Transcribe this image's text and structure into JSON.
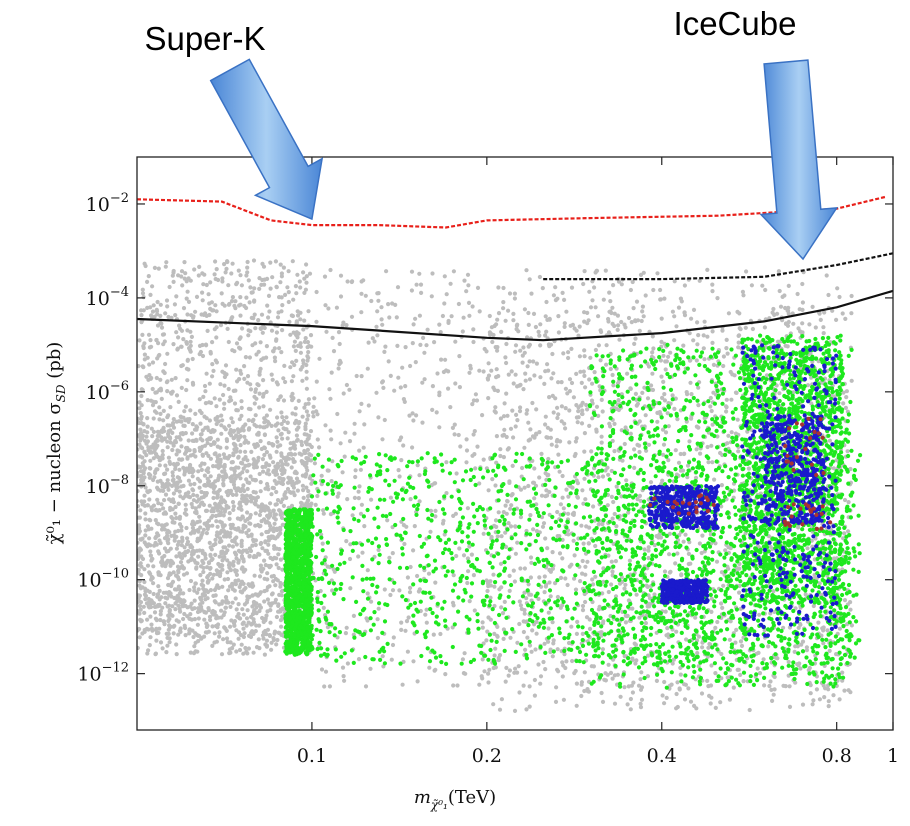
{
  "chart_data": {
    "type": "scatter",
    "x_scale": "log",
    "y_scale": "log",
    "xlabel_main": "m",
    "xlabel_sub": "χ̃⁰₁",
    "xlabel_unit": "(TeV)",
    "ylabel": "χ̃⁰₁ − nucleon σ",
    "ylabel_sub": "SD",
    "ylabel_unit": " (pb)",
    "xlim": [
      0.05,
      1.0
    ],
    "ylim_exp": [
      -13.2,
      -1.0
    ],
    "x_ticks": [
      {
        "value": 0.1,
        "label": "0.1"
      },
      {
        "value": 0.2,
        "label": "0.2"
      },
      {
        "value": 0.4,
        "label": "0.4"
      },
      {
        "value": 0.8,
        "label": "0.8"
      },
      {
        "value": 1.0,
        "label": "1"
      }
    ],
    "y_ticks": [
      {
        "exp": -2,
        "base": "10",
        "sup": "−2"
      },
      {
        "exp": -4,
        "base": "10",
        "sup": "−4"
      },
      {
        "exp": -6,
        "base": "10",
        "sup": "−6"
      },
      {
        "exp": -8,
        "base": "10",
        "sup": "−8"
      },
      {
        "exp": -10,
        "base": "10",
        "sup": "−10"
      },
      {
        "exp": -12,
        "base": "10",
        "sup": "−12"
      }
    ],
    "curves": [
      {
        "color": "#e8201a",
        "dash": true,
        "points": [
          [
            0.05,
            -1.9
          ],
          [
            0.07,
            -1.95
          ],
          [
            0.085,
            -2.35
          ],
          [
            0.1,
            -2.45
          ],
          [
            0.13,
            -2.45
          ],
          [
            0.17,
            -2.5
          ],
          [
            0.2,
            -2.35
          ],
          [
            0.3,
            -2.3
          ],
          [
            0.5,
            -2.25
          ],
          [
            0.8,
            -2.1
          ],
          [
            0.97,
            -1.85
          ]
        ]
      },
      {
        "color": "#111111",
        "dash": true,
        "points": [
          [
            0.25,
            -3.6
          ],
          [
            0.4,
            -3.6
          ],
          [
            0.6,
            -3.55
          ],
          [
            0.8,
            -3.3
          ],
          [
            1.0,
            -3.05
          ]
        ]
      },
      {
        "color": "#111111",
        "dash": false,
        "points": [
          [
            0.05,
            -4.45
          ],
          [
            0.1,
            -4.6
          ],
          [
            0.2,
            -4.85
          ],
          [
            0.25,
            -4.9
          ],
          [
            0.4,
            -4.75
          ],
          [
            0.6,
            -4.5
          ],
          [
            0.8,
            -4.2
          ],
          [
            1.0,
            -3.85
          ]
        ]
      }
    ],
    "series_regions": [
      {
        "color": "#bdbdbd",
        "count": 5200,
        "regions": [
          {
            "x": [
              0.05,
              0.1
            ],
            "y": [
              -11.6,
              -3.2
            ]
          },
          {
            "x": [
              0.1,
              0.85
            ],
            "y": [
              -12.3,
              -3.4
            ]
          },
          {
            "x": [
              0.2,
              0.85
            ],
            "y": [
              -12.8,
              -4.2
            ]
          },
          {
            "x": [
              0.05,
              0.1
            ],
            "y": [
              -11.2,
              -6.5
            ]
          }
        ]
      },
      {
        "color": "#1ee81e",
        "count": 5200,
        "regions": [
          {
            "x": [
              0.1,
              0.88
            ],
            "y": [
              -11.8,
              -7.3
            ]
          },
          {
            "x": [
              0.09,
              0.1
            ],
            "y": [
              -11.6,
              -8.5
            ]
          },
          {
            "x": [
              0.3,
              0.85
            ],
            "y": [
              -12.3,
              -5.0
            ]
          },
          {
            "x": [
              0.55,
              0.82
            ],
            "y": [
              -10.5,
              -4.8
            ]
          }
        ]
      },
      {
        "color": "#1a1acc",
        "count": 1500,
        "regions": [
          {
            "x": [
              0.38,
              0.5
            ],
            "y": [
              -8.9,
              -8.0
            ]
          },
          {
            "x": [
              0.4,
              0.48
            ],
            "y": [
              -10.5,
              -10.0
            ]
          },
          {
            "x": [
              0.55,
              0.8
            ],
            "y": [
              -11.2,
              -5.0
            ]
          },
          {
            "x": [
              0.6,
              0.76
            ],
            "y": [
              -8.8,
              -6.5
            ]
          }
        ]
      },
      {
        "color": "#a83232",
        "count": 60,
        "regions": [
          {
            "x": [
              0.38,
              0.5
            ],
            "y": [
              -8.6,
              -8.2
            ]
          },
          {
            "x": [
              0.65,
              0.76
            ],
            "y": [
              -7.8,
              -6.5
            ]
          },
          {
            "x": [
              0.65,
              0.78
            ],
            "y": [
              -9.0,
              -8.3
            ]
          }
        ]
      }
    ],
    "annotations": [
      {
        "text": "Super-K",
        "target_x": 0.1,
        "target_exp": -2.45
      },
      {
        "text": "IceCube",
        "target_x": 0.7,
        "target_exp": -3.3
      }
    ]
  }
}
